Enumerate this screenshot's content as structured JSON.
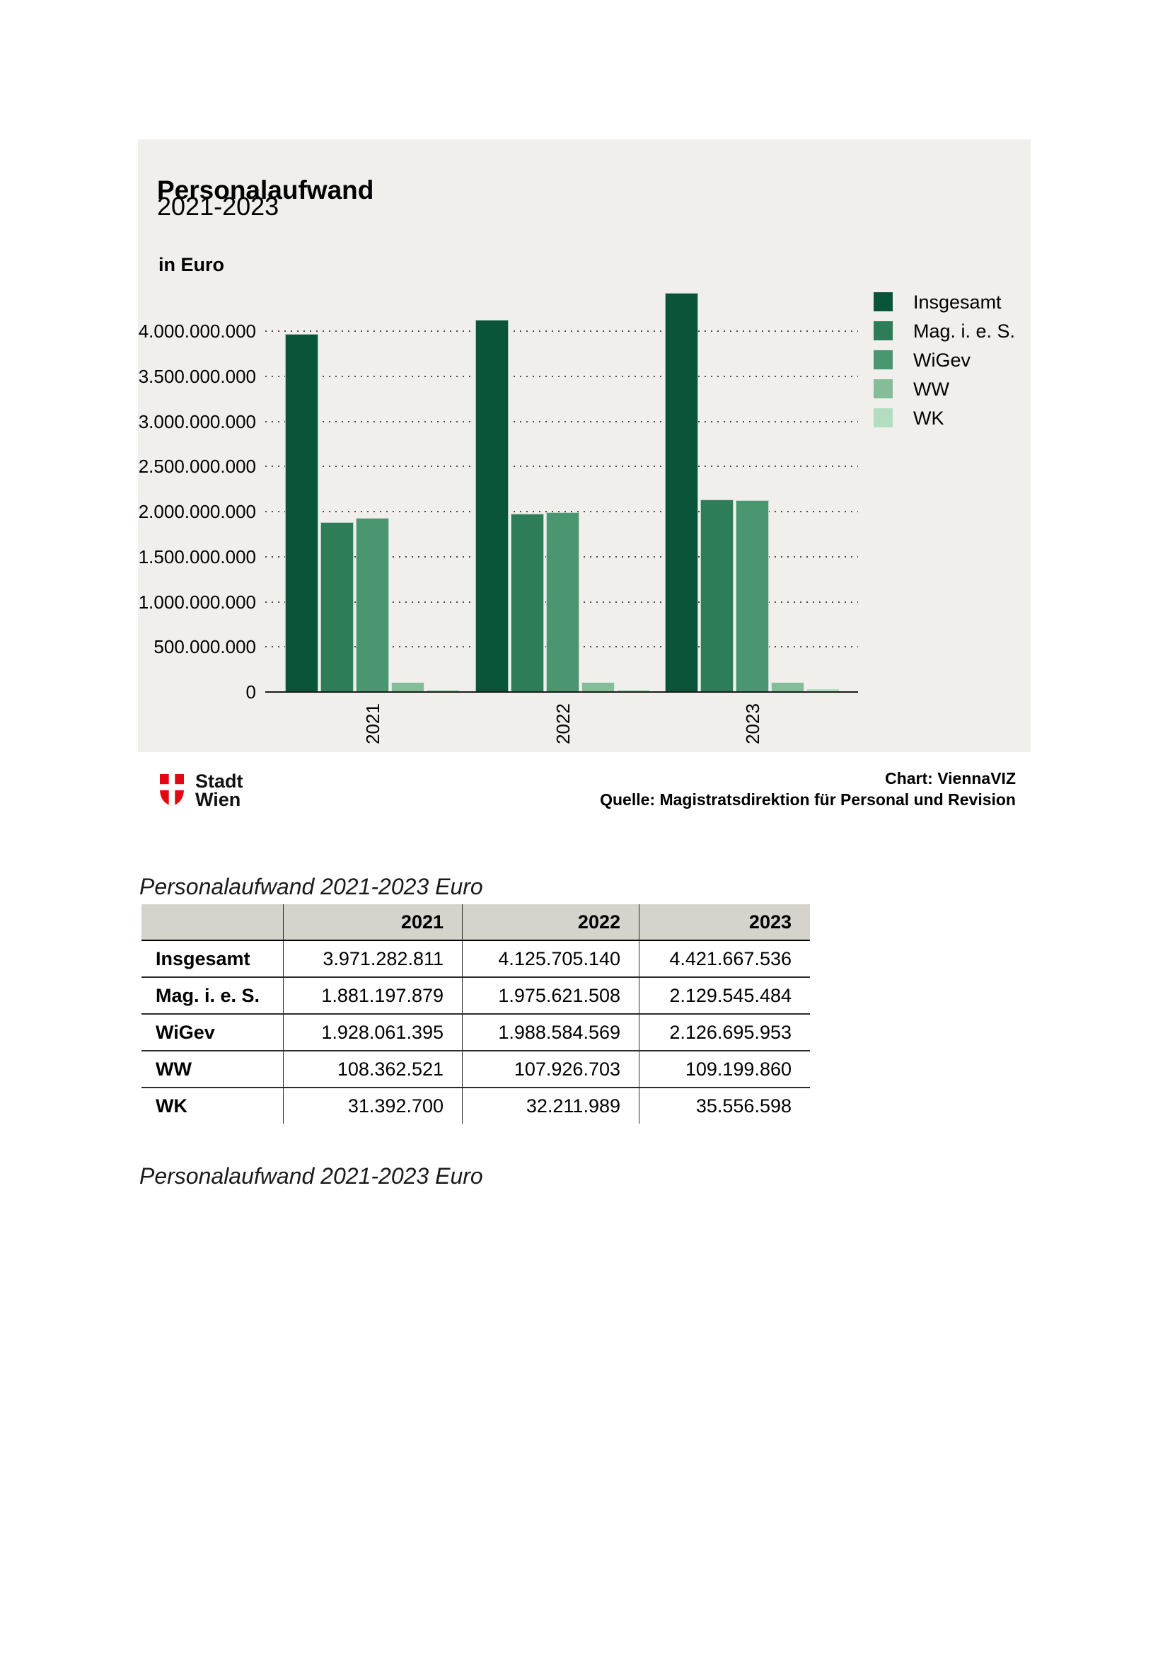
{
  "chart": {
    "title": "Personalaufwand",
    "subtitle": "2021-2023",
    "unit_label": "in Euro",
    "panel_bg": "#f0efec"
  },
  "chart_data": {
    "type": "bar",
    "title": "Personalaufwand 2021-2023",
    "ylabel": "in Euro",
    "categories": [
      "2021",
      "2022",
      "2023"
    ],
    "series": [
      {
        "name": "Insgesamt",
        "color": "#0a5539",
        "values": [
          3971282811,
          4125705140,
          4421667536
        ]
      },
      {
        "name": "Mag. i. e. S.",
        "color": "#2c7d58",
        "values": [
          1881197879,
          1975621508,
          2129545484
        ]
      },
      {
        "name": "WiGev",
        "color": "#4a9671",
        "values": [
          1928061395,
          1988584569,
          2126695953
        ]
      },
      {
        "name": "WW",
        "color": "#85bd9a",
        "values": [
          108362521,
          107926703,
          109199860
        ]
      },
      {
        "name": "WK",
        "color": "#b3ddc0",
        "values": [
          31392700,
          32211989,
          35556598
        ]
      }
    ],
    "ylim": [
      0,
      4500000000
    ],
    "grid": "horizontal-dotted",
    "legend_position": "top-right",
    "y_ticks": [
      {
        "value": 0,
        "label": "0"
      },
      {
        "value": 500000000,
        "label": "500.000.000"
      },
      {
        "value": 1000000000,
        "label": "1.000.000.000"
      },
      {
        "value": 1500000000,
        "label": "1.500.000.000"
      },
      {
        "value": 2000000000,
        "label": "2.000.000.000"
      },
      {
        "value": 2500000000,
        "label": "2.500.000.000"
      },
      {
        "value": 3000000000,
        "label": "3.000.000.000"
      },
      {
        "value": 3500000000,
        "label": "3.500.000.000"
      },
      {
        "value": 4000000000,
        "label": "4.000.000.000"
      }
    ]
  },
  "footer": {
    "logo_line1": "Stadt",
    "logo_line2": "Wien",
    "logo_red": "#e30613",
    "credit_chart": "Chart: ViennaVIZ",
    "credit_source": "Quelle: Magistratsdirektion für Personal und Revision"
  },
  "captions": {
    "top": "Personalaufwand 2021-2023 Euro",
    "bottom": "Personalaufwand 2021-2023 Euro"
  },
  "table": {
    "column_headers": [
      "",
      "2021",
      "2022",
      "2023"
    ],
    "rows": [
      {
        "label": "Insgesamt",
        "values": [
          "3.971.282.811",
          "4.125.705.140",
          "4.421.667.536"
        ]
      },
      {
        "label": "Mag. i. e. S.",
        "values": [
          "1.881.197.879",
          "1.975.621.508",
          "2.129.545.484"
        ]
      },
      {
        "label": "WiGev",
        "values": [
          "1.928.061.395",
          "1.988.584.569",
          "2.126.695.953"
        ]
      },
      {
        "label": "WW",
        "values": [
          "108.362.521",
          "107.926.703",
          "109.199.860"
        ]
      },
      {
        "label": "WK",
        "values": [
          "31.392.700",
          "32.211.989",
          "35.556.598"
        ]
      }
    ]
  }
}
